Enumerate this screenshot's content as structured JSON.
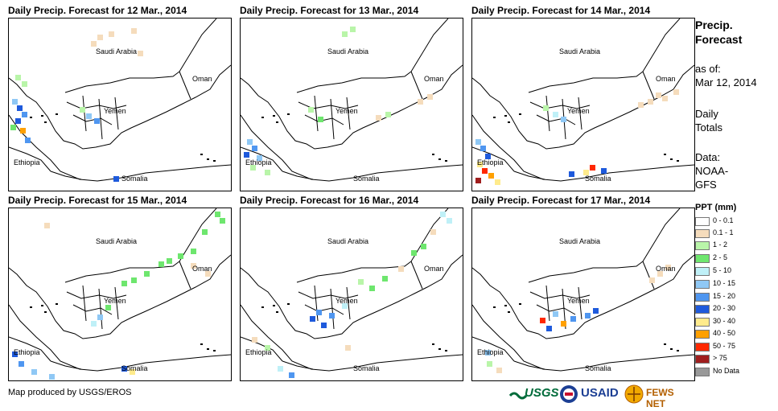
{
  "panels": [
    {
      "title": "Daily Precip. Forecast for 12 Mar., 2014"
    },
    {
      "title": "Daily Precip. Forecast for 13 Mar., 2014"
    },
    {
      "title": "Daily Precip. Forecast for 14 Mar., 2014"
    },
    {
      "title": "Daily Precip. Forecast for 15 Mar., 2014"
    },
    {
      "title": "Daily Precip. Forecast for 16 Mar., 2014"
    },
    {
      "title": "Daily Precip. Forecast for 17 Mar., 2014"
    }
  ],
  "map_labels": {
    "saudi": "Saudi Arabia",
    "oman": "Oman",
    "yemen": "Yemen",
    "ethiopia": "Ethiopia",
    "somalia": "Somalia"
  },
  "sidebar": {
    "title_line1": "Precip.",
    "title_line2": "Forecast",
    "asof_label": "as of:",
    "asof_date": "Mar 12, 2014",
    "daily_line1": "Daily",
    "daily_line2": "Totals",
    "data_label": "Data:",
    "data_line1": "NOAA-",
    "data_line2": "GFS"
  },
  "legend": {
    "title": "PPT (mm)",
    "items": [
      {
        "label": "0 - 0.1",
        "color": "#ffffff"
      },
      {
        "label": "0.1 - 1",
        "color": "#f5dcbc"
      },
      {
        "label": "1 - 2",
        "color": "#b9f5a9"
      },
      {
        "label": "2 - 5",
        "color": "#6ee66e"
      },
      {
        "label": "5 - 10",
        "color": "#bff0f7"
      },
      {
        "label": "10 - 15",
        "color": "#8fc8f5"
      },
      {
        "label": "15 - 20",
        "color": "#4f96f0"
      },
      {
        "label": "20 - 30",
        "color": "#1e5adc"
      },
      {
        "label": "30 - 40",
        "color": "#ffeb8c"
      },
      {
        "label": "40 - 50",
        "color": "#ffa000"
      },
      {
        "label": "50 - 75",
        "color": "#ff2800"
      },
      {
        "label": "> 75",
        "color": "#a01e1e"
      },
      {
        "label": "No Data",
        "color": "#999999"
      }
    ]
  },
  "footer": {
    "credit": "Map produced by USGS/EROS",
    "usgs": "USGS",
    "usaid": "USAID",
    "fews": "FEWS NET"
  }
}
